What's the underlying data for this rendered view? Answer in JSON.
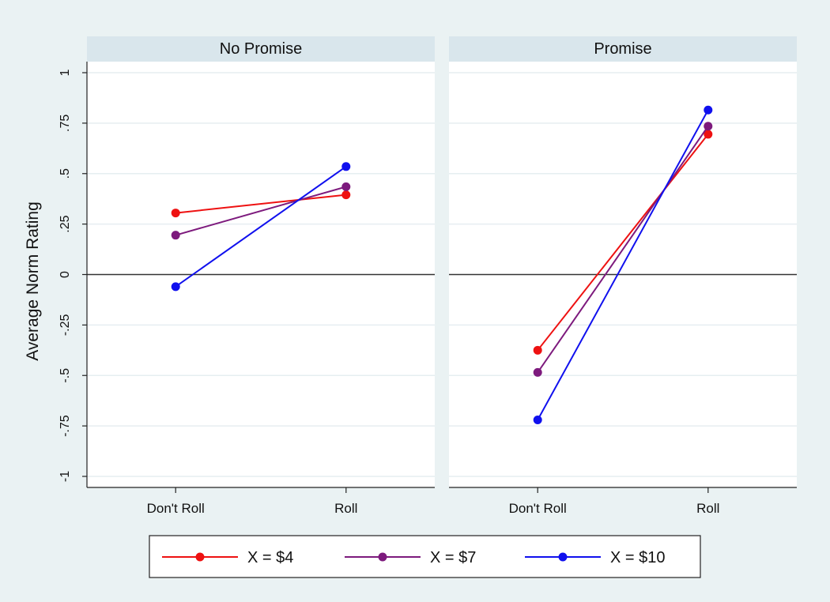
{
  "chart_data": {
    "type": "line",
    "ylabel": "Average Norm Rating",
    "xlabel": "",
    "ylim": [
      -1,
      1
    ],
    "yticks": [
      {
        "value": 1,
        "label": "1"
      },
      {
        "value": 0.75,
        "label": ".75"
      },
      {
        "value": 0.5,
        "label": ".5"
      },
      {
        "value": 0.25,
        "label": ".25"
      },
      {
        "value": 0,
        "label": "0"
      },
      {
        "value": -0.25,
        "label": "-.25"
      },
      {
        "value": -0.5,
        "label": "-.5"
      },
      {
        "value": -0.75,
        "label": "-.75"
      },
      {
        "value": -1,
        "label": "-1"
      }
    ],
    "categories": [
      "Don't Roll",
      "Roll"
    ],
    "reference_line": 0,
    "grid": true,
    "legend_position": "bottom",
    "panels": [
      {
        "title": "No Promise",
        "series": [
          {
            "name": "X = $4",
            "color": "#ee1111",
            "values": [
              0.305,
              0.395
            ]
          },
          {
            "name": "X = $7",
            "color": "#7d1a7d",
            "values": [
              0.195,
              0.435
            ]
          },
          {
            "name": "X = $10",
            "color": "#1010ee",
            "values": [
              -0.06,
              0.535
            ]
          }
        ]
      },
      {
        "title": "Promise",
        "series": [
          {
            "name": "X = $4",
            "color": "#ee1111",
            "values": [
              -0.375,
              0.695
            ]
          },
          {
            "name": "X = $7",
            "color": "#7d1a7d",
            "values": [
              -0.485,
              0.735
            ]
          },
          {
            "name": "X = $10",
            "color": "#1010ee",
            "values": [
              -0.72,
              0.815
            ]
          }
        ]
      }
    ]
  }
}
